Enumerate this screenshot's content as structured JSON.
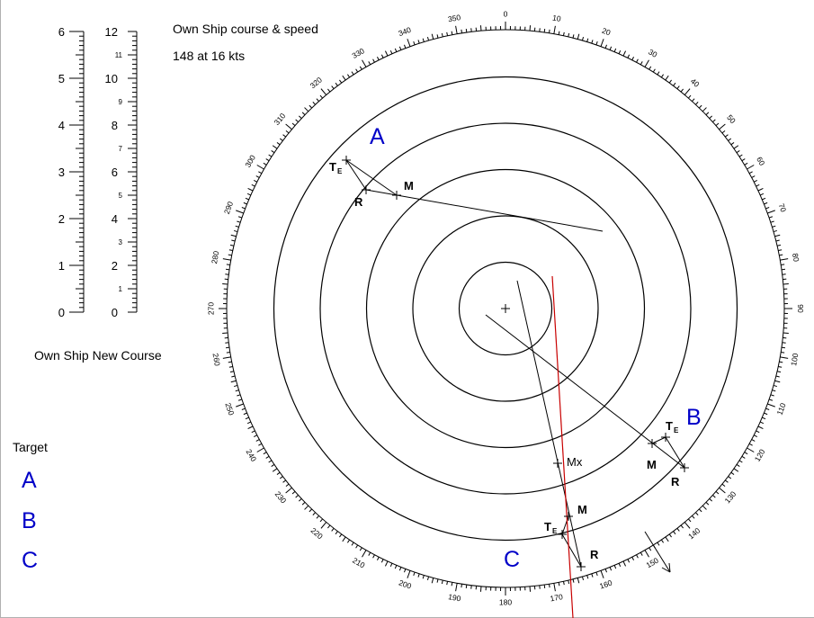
{
  "own_ship": {
    "title": "Own Ship course & speed",
    "value": "148 at 16 kts",
    "new_course_label": "Own Ship New Course"
  },
  "scales": {
    "left": {
      "major": [
        "0",
        "1",
        "2",
        "3",
        "4",
        "5",
        "6"
      ]
    },
    "right": {
      "major": [
        "0",
        "2",
        "4",
        "6",
        "8",
        "10",
        "12"
      ],
      "minor": [
        "1",
        "3",
        "5",
        "7",
        "9",
        "11"
      ]
    }
  },
  "targets": {
    "heading": "Target",
    "items": [
      {
        "label": "A",
        "color": "#0000c8"
      },
      {
        "label": "B",
        "color": "#0000c8"
      },
      {
        "label": "C",
        "color": "#0000c8"
      }
    ]
  },
  "plot": {
    "bearing_labels": [
      "0",
      "10",
      "20",
      "30",
      "40",
      "50",
      "60",
      "70",
      "80",
      "90",
      "100",
      "110",
      "120",
      "130",
      "140",
      "150",
      "160",
      "170",
      "180",
      "190",
      "200",
      "210",
      "220",
      "230",
      "240",
      "250",
      "260",
      "270",
      "280",
      "290",
      "300",
      "310",
      "320",
      "330",
      "340",
      "350"
    ],
    "ring_count": 5,
    "marker_labels": {
      "ep": "T",
      "ep_sub": "E",
      "m": "M",
      "r": "R",
      "mx": "Mx"
    },
    "target_letters": [
      "A",
      "B",
      "C"
    ],
    "colors": {
      "ink": "#000000",
      "accent": "#c80000",
      "target": "#0000c8"
    }
  }
}
